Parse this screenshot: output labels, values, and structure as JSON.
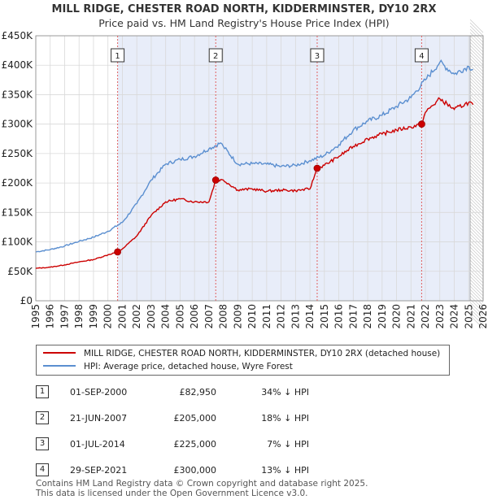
{
  "title": "MILL RIDGE, CHESTER ROAD NORTH, KIDDERMINSTER, DY10 2RX",
  "subtitle": "Price paid vs. HM Land Registry's House Price Index (HPI)",
  "chart_data": {
    "type": "line",
    "title": "MILL RIDGE, CHESTER ROAD NORTH, KIDDERMINSTER, DY10 2RX",
    "subtitle": "Price paid vs. HM Land Registry's House Price Index (HPI)",
    "xlabel": "",
    "ylabel": "",
    "xlim": [
      1995,
      2026
    ],
    "ylim": [
      0,
      450000
    ],
    "x_ticks": [
      "1995",
      "1996",
      "1997",
      "1998",
      "1999",
      "2000",
      "2001",
      "2002",
      "2003",
      "2004",
      "2005",
      "2006",
      "2007",
      "2008",
      "2009",
      "2010",
      "2011",
      "2012",
      "2013",
      "2014",
      "2015",
      "2016",
      "2017",
      "2018",
      "2019",
      "2020",
      "2021",
      "2022",
      "2023",
      "2024",
      "2025",
      "2026"
    ],
    "y_ticks": [
      "£0",
      "£50K",
      "£100K",
      "£150K",
      "£200K",
      "£250K",
      "£300K",
      "£350K",
      "£400K",
      "£450K"
    ],
    "y_tick_values": [
      0,
      50000,
      100000,
      150000,
      200000,
      250000,
      300000,
      350000,
      400000,
      450000
    ],
    "grid": true,
    "legend_position": "below",
    "forecast_start": 2025.1,
    "series": [
      {
        "name": "MILL RIDGE, CHESTER ROAD NORTH, KIDDERMINSTER, DY10 2RX (detached house)",
        "color": "#cc0000",
        "x": [
          1995.0,
          1996.0,
          1997.0,
          1998.0,
          1999.0,
          2000.0,
          2000.67,
          2001.0,
          2002.0,
          2003.0,
          2004.0,
          2005.0,
          2006.0,
          2007.0,
          2007.47,
          2008.0,
          2009.0,
          2010.0,
          2011.0,
          2012.0,
          2013.0,
          2014.0,
          2014.5,
          2015.0,
          2016.0,
          2017.0,
          2018.0,
          2019.0,
          2020.0,
          2021.0,
          2021.74,
          2022.0,
          2023.0,
          2024.0,
          2025.0,
          2025.3
        ],
        "y": [
          55000,
          57000,
          61000,
          66000,
          70000,
          78000,
          82950,
          88000,
          110000,
          145000,
          168000,
          173000,
          168000,
          168000,
          205000,
          205000,
          188000,
          190000,
          186000,
          188000,
          187000,
          190000,
          225000,
          230000,
          245000,
          262000,
          275000,
          283000,
          290000,
          295000,
          300000,
          320000,
          343000,
          325000,
          337000,
          333000
        ]
      },
      {
        "name": "HPI: Average price, detached house, Wyre Forest",
        "color": "#5b8fd0",
        "x": [
          1995.0,
          1996.0,
          1997.0,
          1998.0,
          1999.0,
          2000.0,
          2001.0,
          2002.0,
          2003.0,
          2004.0,
          2005.0,
          2006.0,
          2007.0,
          2007.8,
          2008.0,
          2009.0,
          2010.0,
          2011.0,
          2012.0,
          2013.0,
          2014.0,
          2015.0,
          2016.0,
          2017.0,
          2018.0,
          2019.0,
          2020.0,
          2021.0,
          2022.0,
          2023.0,
          2024.0,
          2025.0,
          2025.3
        ],
        "y": [
          83000,
          87000,
          93000,
          101000,
          108000,
          118000,
          133000,
          165000,
          205000,
          232000,
          240000,
          245000,
          258000,
          268000,
          262000,
          232000,
          233000,
          232000,
          228000,
          230000,
          238000,
          247000,
          265000,
          290000,
          305000,
          315000,
          330000,
          345000,
          375000,
          405000,
          385000,
          398000,
          393000
        ]
      }
    ],
    "sales": [
      {
        "n": "1",
        "x": 2000.67,
        "y": 82950
      },
      {
        "n": "2",
        "x": 2007.47,
        "y": 205000
      },
      {
        "n": "3",
        "x": 2014.5,
        "y": 225000
      },
      {
        "n": "4",
        "x": 2021.74,
        "y": 300000
      }
    ]
  },
  "legend": {
    "red_label": "MILL RIDGE, CHESTER ROAD NORTH, KIDDERMINSTER, DY10 2RX (detached house)",
    "blue_label": "HPI: Average price, detached house, Wyre Forest",
    "red_color": "#cc0000",
    "blue_color": "#5b8fd0"
  },
  "transactions": [
    {
      "num": "1",
      "date": "01-SEP-2000",
      "price": "£82,950",
      "hpi": "34% ↓ HPI"
    },
    {
      "num": "2",
      "date": "21-JUN-2007",
      "price": "£205,000",
      "hpi": "18% ↓ HPI"
    },
    {
      "num": "3",
      "date": "01-JUL-2014",
      "price": "£225,000",
      "hpi": "7% ↓ HPI"
    },
    {
      "num": "4",
      "date": "29-SEP-2021",
      "price": "£300,000",
      "hpi": "13% ↓ HPI"
    }
  ],
  "footer": {
    "line1": "Contains HM Land Registry data © Crown copyright and database right 2025.",
    "line2": "This data is licensed under the Open Government Licence v3.0."
  }
}
